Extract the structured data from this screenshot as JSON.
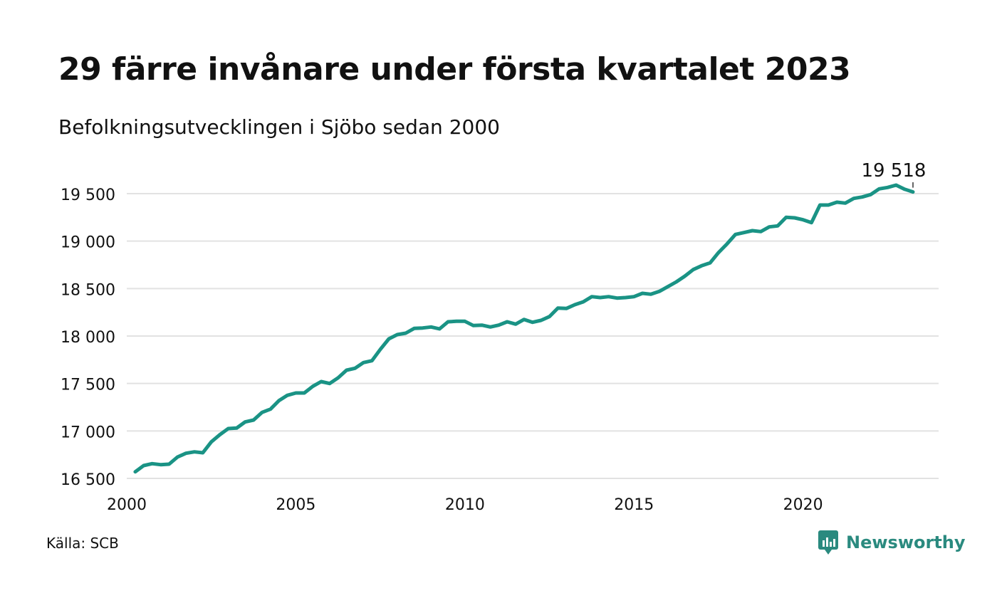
{
  "title": "29 färre invånare under första kvartalet 2023",
  "subtitle": "Befolkningsutvecklingen i Sjöbo sedan 2000",
  "source": "Källa: SCB",
  "brand": {
    "name": "Newsworthy",
    "icon": "newsworthy-logo-icon",
    "color": "#2a8a7f"
  },
  "chart_data": {
    "type": "line",
    "title": "29 färre invånare under första kvartalet 2023",
    "xlabel": "",
    "ylabel": "",
    "line_color": "#1a9385",
    "grid": true,
    "grid_color": "#e2e2e2",
    "xlim": [
      2000,
      2023.6
    ],
    "ylim": [
      16500,
      19600
    ],
    "x_ticks": [
      2000,
      2005,
      2010,
      2015,
      2020
    ],
    "x_tick_labels": [
      "2000",
      "2005",
      "2010",
      "2015",
      "2020"
    ],
    "y_ticks": [
      16500,
      17000,
      17500,
      18000,
      18500,
      19000,
      19500
    ],
    "y_tick_labels": [
      "16 500",
      "17 000",
      "17 500",
      "18 000",
      "18 500",
      "19 000",
      "19 500"
    ],
    "end_label": "19 518",
    "series": [
      {
        "x": [
          2000.25,
          2000.5,
          2000.75,
          2001.0,
          2001.25,
          2001.5,
          2001.75,
          2002.0,
          2002.25,
          2002.5,
          2002.75,
          2003.0,
          2003.25,
          2003.5,
          2003.75,
          2004.0,
          2004.25,
          2004.5,
          2004.75,
          2005.0,
          2005.25,
          2005.5,
          2005.75,
          2006.0,
          2006.25,
          2006.5,
          2006.75,
          2007.0,
          2007.25,
          2007.5,
          2007.75,
          2008.0,
          2008.25,
          2008.5,
          2008.75,
          2009.0,
          2009.25,
          2009.5,
          2009.75,
          2010.0,
          2010.25,
          2010.5,
          2010.75,
          2011.0,
          2011.25,
          2011.5,
          2011.75,
          2012.0,
          2012.25,
          2012.5,
          2012.75,
          2013.0,
          2013.25,
          2013.5,
          2013.75,
          2014.0,
          2014.25,
          2014.5,
          2014.75,
          2015.0,
          2015.25,
          2015.5,
          2015.75,
          2016.0,
          2016.25,
          2016.5,
          2016.75,
          2017.0,
          2017.25,
          2017.5,
          2017.75,
          2018.0,
          2018.25,
          2018.5,
          2018.75,
          2019.0,
          2019.25,
          2019.5,
          2019.75,
          2020.0,
          2020.25,
          2020.5,
          2020.75,
          2021.0,
          2021.25,
          2021.5,
          2021.75,
          2022.0,
          2022.25,
          2022.5,
          2022.75,
          2023.0,
          2023.25
        ],
        "y": [
          16570,
          16635,
          16655,
          16645,
          16650,
          16725,
          16765,
          16780,
          16770,
          16885,
          16960,
          17025,
          17030,
          17095,
          17115,
          17195,
          17230,
          17320,
          17375,
          17400,
          17400,
          17470,
          17520,
          17500,
          17560,
          17640,
          17660,
          17720,
          17740,
          17860,
          17970,
          18015,
          18030,
          18080,
          18085,
          18095,
          18075,
          18150,
          18155,
          18155,
          18110,
          18115,
          18095,
          18115,
          18150,
          18125,
          18175,
          18145,
          18165,
          18205,
          18295,
          18290,
          18330,
          18360,
          18415,
          18405,
          18415,
          18400,
          18405,
          18415,
          18450,
          18440,
          18470,
          18520,
          18570,
          18630,
          18700,
          18740,
          18770,
          18880,
          18970,
          19070,
          19090,
          19110,
          19100,
          19150,
          19160,
          19250,
          19245,
          19225,
          19195,
          19380,
          19380,
          19410,
          19400,
          19450,
          19465,
          19490,
          19550,
          19565,
          19590,
          19547,
          19518
        ]
      }
    ]
  }
}
